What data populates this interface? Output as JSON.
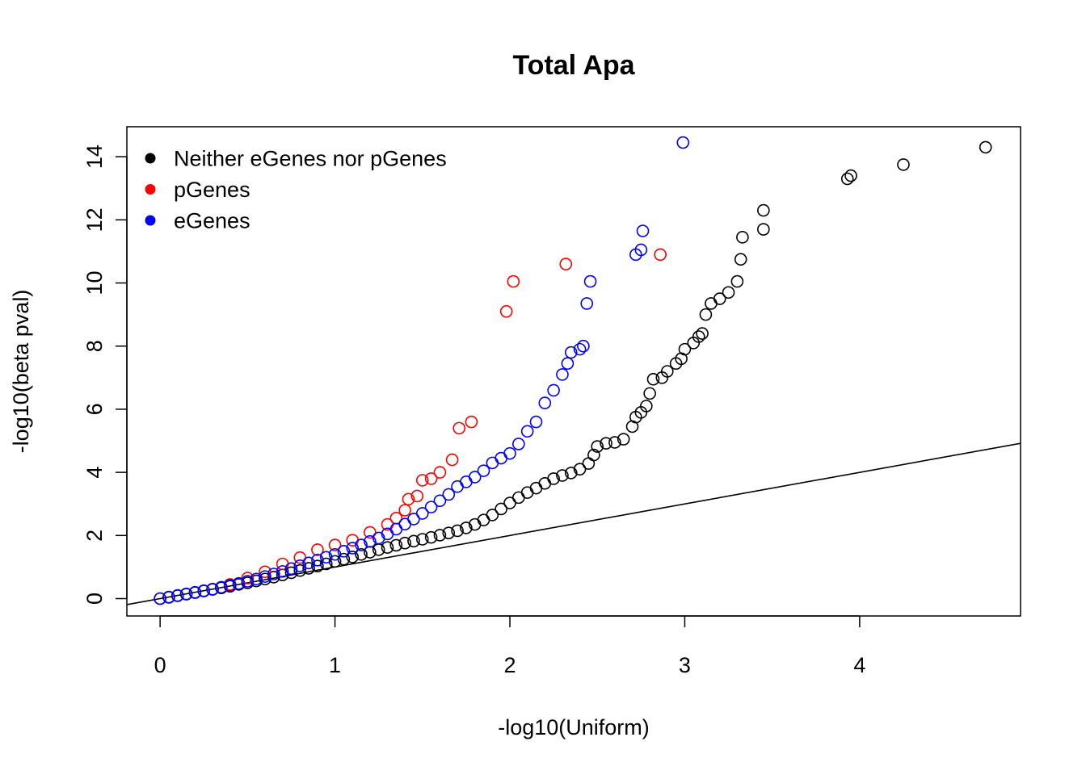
{
  "chart_data": {
    "type": "scatter",
    "title": "Total Apa",
    "xlabel": "-log10(Uniform)",
    "ylabel": "-log10(beta pval)",
    "xlim": [
      -0.19,
      4.92
    ],
    "ylim": [
      -0.55,
      14.95
    ],
    "x_ticks": [
      0,
      1,
      2,
      3,
      4
    ],
    "y_ticks": [
      0,
      2,
      4,
      6,
      8,
      10,
      12,
      14
    ],
    "grid": false,
    "legend_position": "top-left",
    "reference_line": {
      "slope": 1,
      "intercept": 0
    },
    "legend": [
      {
        "label": "Neither eGenes nor pGenes",
        "color": "#000000"
      },
      {
        "label": "pGenes",
        "color": "#ff0000"
      },
      {
        "label": "eGenes",
        "color": "#0000ff"
      }
    ],
    "series": [
      {
        "color": "#000000",
        "points": [
          [
            0.0,
            0.0
          ],
          [
            0.05,
            0.04
          ],
          [
            0.1,
            0.09
          ],
          [
            0.15,
            0.14
          ],
          [
            0.2,
            0.19
          ],
          [
            0.25,
            0.24
          ],
          [
            0.3,
            0.29
          ],
          [
            0.35,
            0.34
          ],
          [
            0.4,
            0.39
          ],
          [
            0.45,
            0.45
          ],
          [
            0.5,
            0.5
          ],
          [
            0.55,
            0.56
          ],
          [
            0.6,
            0.62
          ],
          [
            0.65,
            0.68
          ],
          [
            0.7,
            0.75
          ],
          [
            0.75,
            0.82
          ],
          [
            0.8,
            0.89
          ],
          [
            0.85,
            0.96
          ],
          [
            0.9,
            1.03
          ],
          [
            0.95,
            1.1
          ],
          [
            1.0,
            1.18
          ],
          [
            1.05,
            1.25
          ],
          [
            1.1,
            1.32
          ],
          [
            1.15,
            1.4
          ],
          [
            1.2,
            1.47
          ],
          [
            1.25,
            1.55
          ],
          [
            1.3,
            1.62
          ],
          [
            1.35,
            1.69
          ],
          [
            1.4,
            1.76
          ],
          [
            1.45,
            1.82
          ],
          [
            1.5,
            1.88
          ],
          [
            1.55,
            1.94
          ],
          [
            1.6,
            2.01
          ],
          [
            1.65,
            2.08
          ],
          [
            1.7,
            2.15
          ],
          [
            1.75,
            2.24
          ],
          [
            1.8,
            2.35
          ],
          [
            1.85,
            2.49
          ],
          [
            1.9,
            2.65
          ],
          [
            1.95,
            2.84
          ],
          [
            2.0,
            3.03
          ],
          [
            2.05,
            3.2
          ],
          [
            2.1,
            3.36
          ],
          [
            2.15,
            3.5
          ],
          [
            2.2,
            3.65
          ],
          [
            2.25,
            3.8
          ],
          [
            2.3,
            3.9
          ],
          [
            2.35,
            3.98
          ],
          [
            2.4,
            4.1
          ],
          [
            2.45,
            4.28
          ],
          [
            2.48,
            4.55
          ],
          [
            2.5,
            4.82
          ],
          [
            2.55,
            4.92
          ],
          [
            2.6,
            4.95
          ],
          [
            2.65,
            5.05
          ],
          [
            2.7,
            5.45
          ],
          [
            2.72,
            5.75
          ],
          [
            2.75,
            5.9
          ],
          [
            2.78,
            6.1
          ],
          [
            2.8,
            6.5
          ],
          [
            2.82,
            6.95
          ],
          [
            2.87,
            7.0
          ],
          [
            2.9,
            7.2
          ],
          [
            2.95,
            7.45
          ],
          [
            2.98,
            7.6
          ],
          [
            3.0,
            7.9
          ],
          [
            3.05,
            8.1
          ],
          [
            3.08,
            8.3
          ],
          [
            3.1,
            8.4
          ],
          [
            3.12,
            9.0
          ],
          [
            3.15,
            9.35
          ],
          [
            3.2,
            9.5
          ],
          [
            3.25,
            9.7
          ],
          [
            3.3,
            10.05
          ],
          [
            3.32,
            10.75
          ],
          [
            3.33,
            11.45
          ],
          [
            3.45,
            11.7
          ],
          [
            3.45,
            12.3
          ],
          [
            3.93,
            13.3
          ],
          [
            3.95,
            13.4
          ],
          [
            4.25,
            13.75
          ],
          [
            4.72,
            14.3
          ]
        ]
      },
      {
        "color": "#ff0000",
        "points": [
          [
            0.3,
            0.3
          ],
          [
            0.4,
            0.45
          ],
          [
            0.5,
            0.65
          ],
          [
            0.6,
            0.85
          ],
          [
            0.7,
            1.1
          ],
          [
            0.8,
            1.3
          ],
          [
            0.9,
            1.55
          ],
          [
            1.0,
            1.7
          ],
          [
            1.1,
            1.85
          ],
          [
            1.2,
            2.1
          ],
          [
            1.3,
            2.35
          ],
          [
            1.35,
            2.55
          ],
          [
            1.4,
            2.8
          ],
          [
            1.42,
            3.15
          ],
          [
            1.47,
            3.25
          ],
          [
            1.5,
            3.75
          ],
          [
            1.55,
            3.8
          ],
          [
            1.6,
            4.0
          ],
          [
            1.67,
            4.4
          ],
          [
            1.71,
            5.4
          ],
          [
            1.78,
            5.6
          ],
          [
            1.98,
            9.1
          ],
          [
            2.02,
            10.05
          ],
          [
            2.32,
            10.6
          ],
          [
            2.86,
            10.9
          ]
        ]
      },
      {
        "color": "#0000ff",
        "points": [
          [
            0.0,
            0.0
          ],
          [
            0.05,
            0.05
          ],
          [
            0.1,
            0.1
          ],
          [
            0.15,
            0.15
          ],
          [
            0.2,
            0.2
          ],
          [
            0.25,
            0.25
          ],
          [
            0.3,
            0.3
          ],
          [
            0.35,
            0.36
          ],
          [
            0.4,
            0.42
          ],
          [
            0.45,
            0.48
          ],
          [
            0.5,
            0.55
          ],
          [
            0.55,
            0.62
          ],
          [
            0.6,
            0.7
          ],
          [
            0.65,
            0.78
          ],
          [
            0.7,
            0.86
          ],
          [
            0.75,
            0.95
          ],
          [
            0.8,
            1.04
          ],
          [
            0.85,
            1.13
          ],
          [
            0.9,
            1.22
          ],
          [
            0.95,
            1.31
          ],
          [
            1.0,
            1.4
          ],
          [
            1.05,
            1.5
          ],
          [
            1.1,
            1.6
          ],
          [
            1.15,
            1.7
          ],
          [
            1.2,
            1.81
          ],
          [
            1.25,
            1.92
          ],
          [
            1.3,
            2.05
          ],
          [
            1.35,
            2.2
          ],
          [
            1.4,
            2.36
          ],
          [
            1.45,
            2.52
          ],
          [
            1.5,
            2.7
          ],
          [
            1.55,
            2.9
          ],
          [
            1.6,
            3.1
          ],
          [
            1.65,
            3.3
          ],
          [
            1.7,
            3.55
          ],
          [
            1.75,
            3.7
          ],
          [
            1.8,
            3.85
          ],
          [
            1.85,
            4.05
          ],
          [
            1.9,
            4.3
          ],
          [
            1.95,
            4.45
          ],
          [
            2.0,
            4.6
          ],
          [
            2.05,
            4.9
          ],
          [
            2.1,
            5.3
          ],
          [
            2.15,
            5.6
          ],
          [
            2.2,
            6.2
          ],
          [
            2.25,
            6.6
          ],
          [
            2.3,
            7.1
          ],
          [
            2.33,
            7.45
          ],
          [
            2.35,
            7.8
          ],
          [
            2.4,
            7.9
          ],
          [
            2.42,
            8.0
          ],
          [
            2.44,
            9.35
          ],
          [
            2.46,
            10.05
          ],
          [
            2.72,
            10.9
          ],
          [
            2.75,
            11.05
          ],
          [
            2.76,
            11.65
          ],
          [
            2.99,
            14.45
          ]
        ]
      }
    ]
  }
}
